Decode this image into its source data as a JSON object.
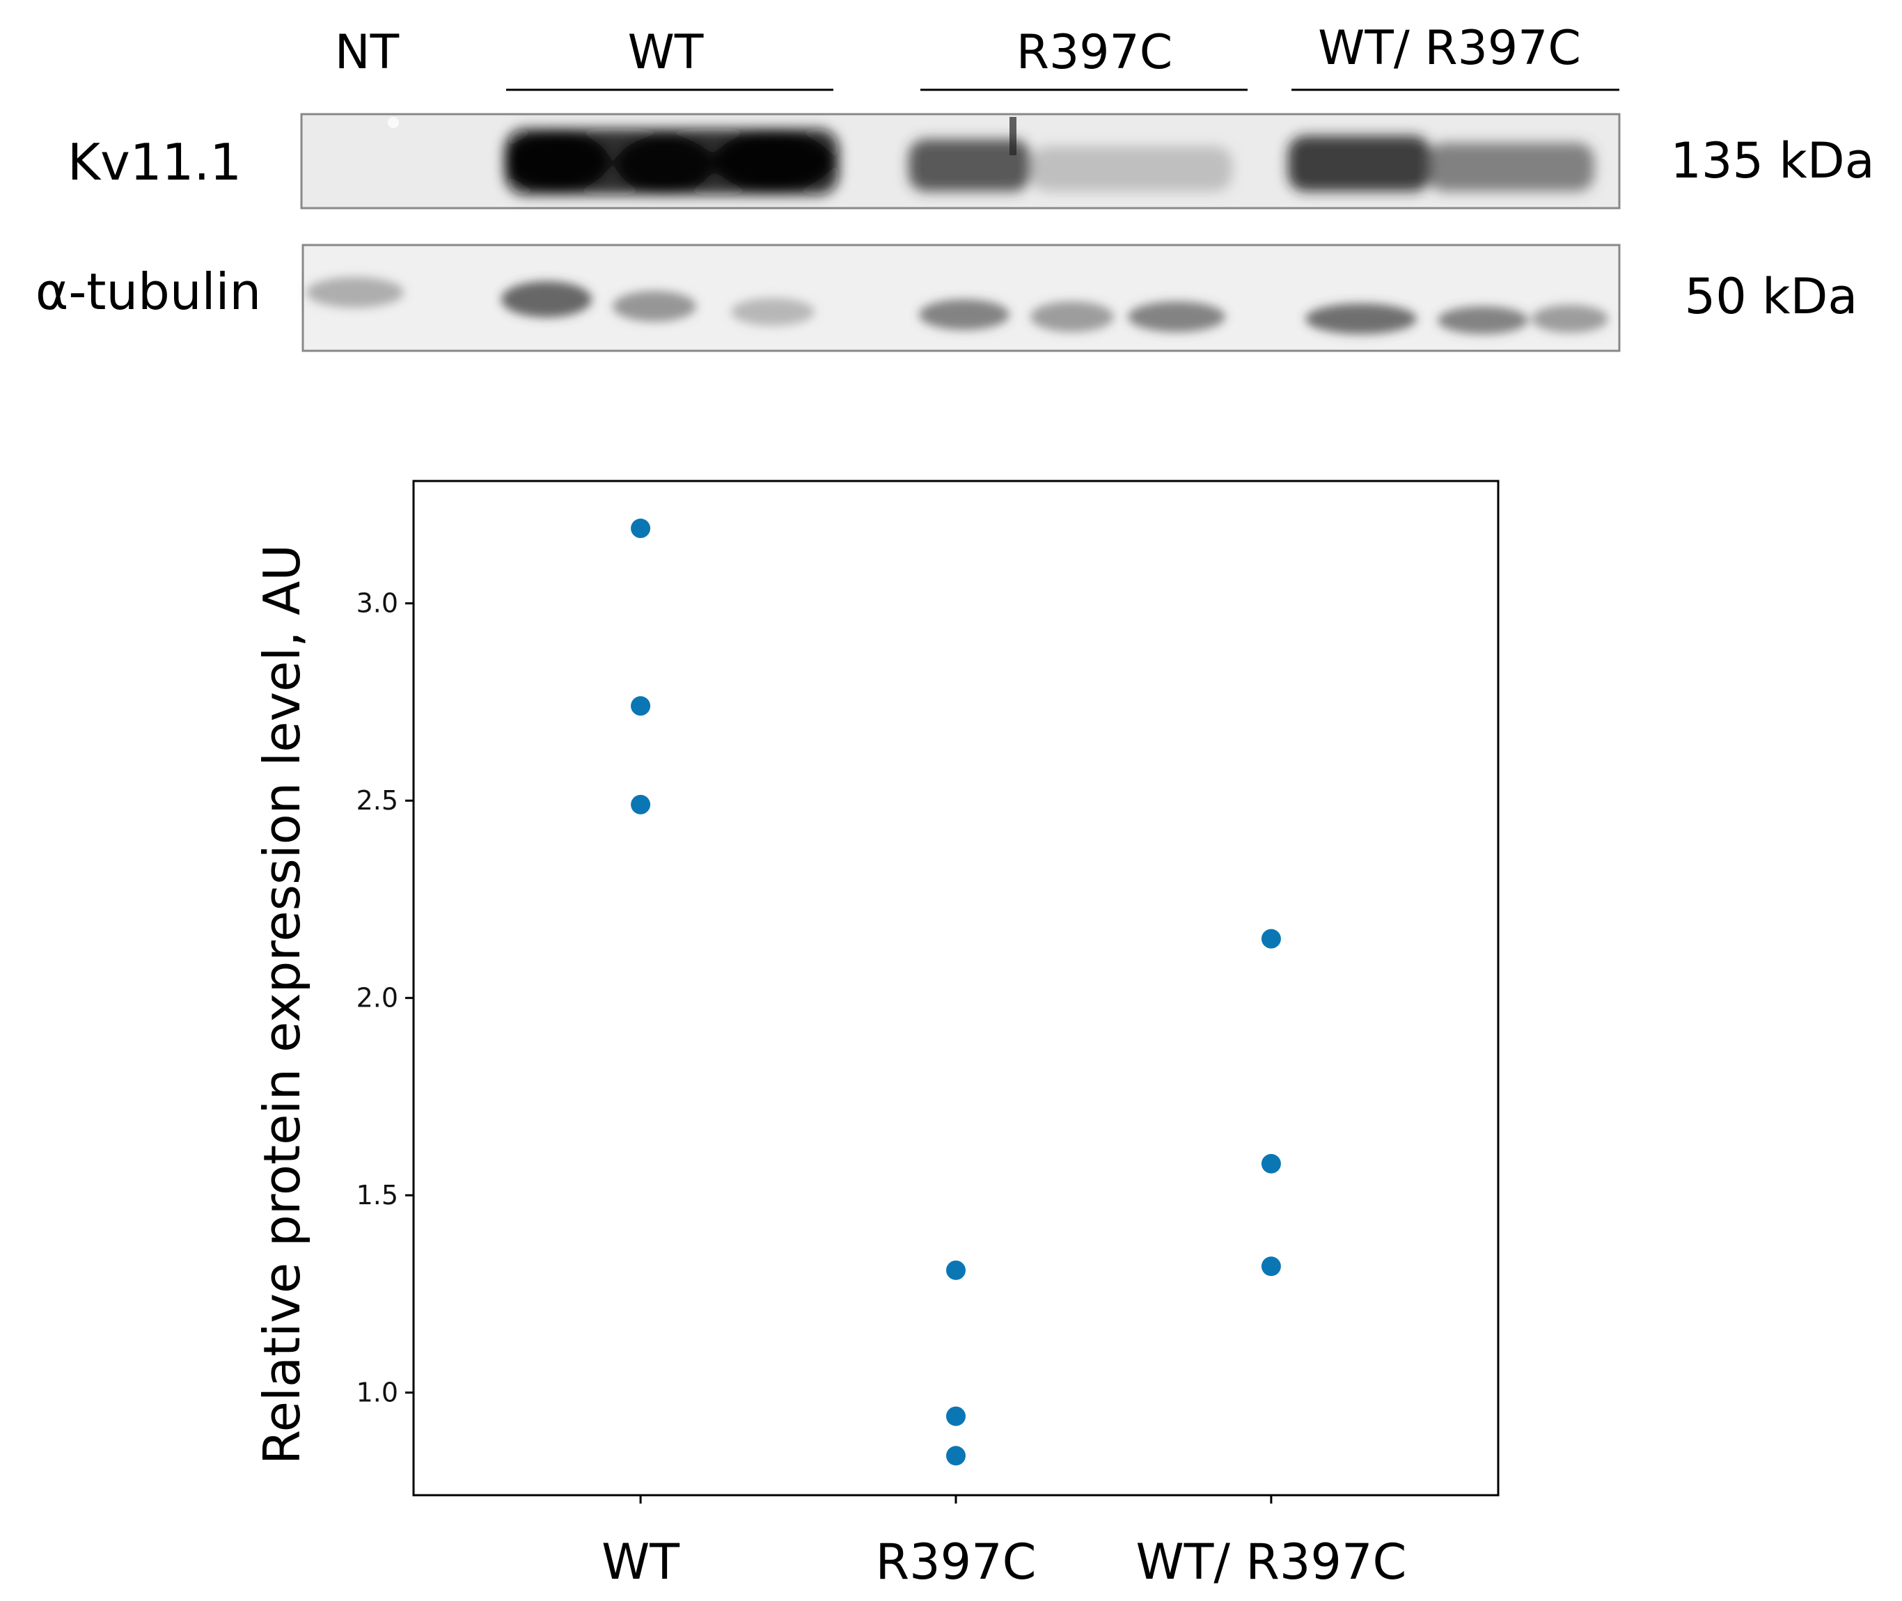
{
  "blot": {
    "lanes": [
      "NT",
      "WT",
      "R397C",
      "WT/ R397C"
    ],
    "rows": [
      {
        "label": "Kv11.1",
        "mw": "135 kDa"
      },
      {
        "label": "α-tubulin",
        "mw": "50 kDa"
      }
    ]
  },
  "chart_data": {
    "type": "scatter",
    "ylabel": "Relative protein expression level, AU",
    "xlabel": "",
    "categories": [
      "WT",
      "R397C",
      "WT/ R397C"
    ],
    "points": [
      {
        "category": "WT",
        "values": [
          3.19,
          2.74,
          2.49
        ]
      },
      {
        "category": "R397C",
        "values": [
          1.31,
          0.94,
          0.84
        ]
      },
      {
        "category": "WT/ R397C",
        "values": [
          2.15,
          1.58,
          1.32
        ]
      }
    ],
    "ylim": [
      0.74,
      3.31
    ],
    "yticks": [
      1.0,
      1.5,
      2.0,
      2.5,
      3.0
    ],
    "ytick_labels": [
      "1.0",
      "1.5",
      "2.0",
      "2.5",
      "3.0"
    ],
    "grid": false,
    "colors": {
      "points": "#0a77b4"
    }
  }
}
